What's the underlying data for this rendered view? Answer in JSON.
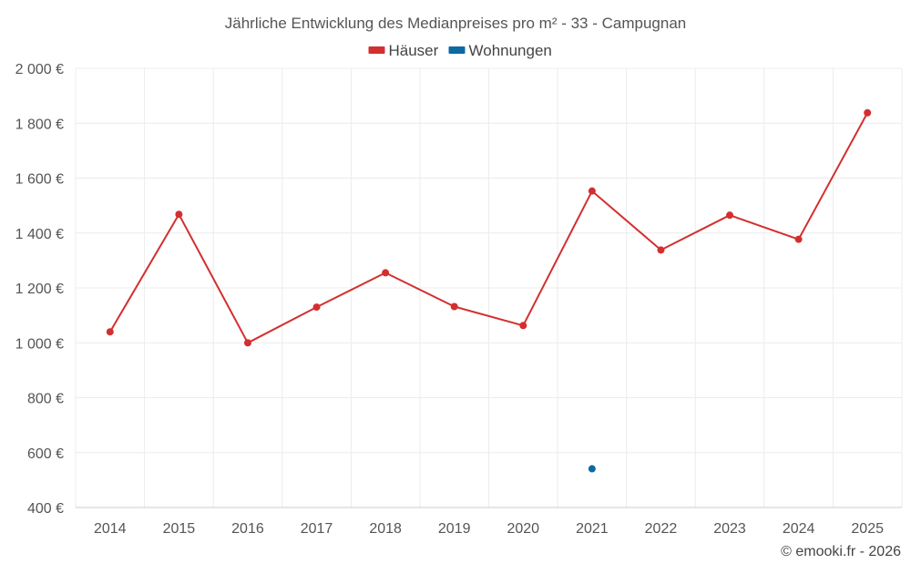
{
  "chart_data": {
    "type": "line",
    "title": "Jährliche Entwicklung des Medianpreises pro m² - 33 - Campugnan",
    "categories": [
      "2014",
      "2015",
      "2016",
      "2017",
      "2018",
      "2019",
      "2020",
      "2021",
      "2022",
      "2023",
      "2024",
      "2025"
    ],
    "series": [
      {
        "name": "Häuser",
        "color": "#d32f2f",
        "values": [
          1040,
          1468,
          1000,
          1130,
          1255,
          1132,
          1063,
          1553,
          1338,
          1465,
          1377,
          1838
        ]
      },
      {
        "name": "Wohnungen",
        "color": "#0b6aa2",
        "values": [
          null,
          null,
          null,
          null,
          null,
          null,
          null,
          541,
          null,
          null,
          null,
          null
        ]
      }
    ],
    "ylim": [
      400,
      2000
    ],
    "yticks": [
      400,
      600,
      800,
      1000,
      1200,
      1400,
      1600,
      1800,
      2000
    ],
    "ytick_labels": [
      "400 €",
      "600 €",
      "800 €",
      "1 000 €",
      "1 200 €",
      "1 400 €",
      "1 600 €",
      "1 800 €",
      "2 000 €"
    ],
    "grid": true,
    "legend_position": "top-center",
    "xlabel": "",
    "ylabel": ""
  },
  "credit": "© emooki.fr - 2026"
}
